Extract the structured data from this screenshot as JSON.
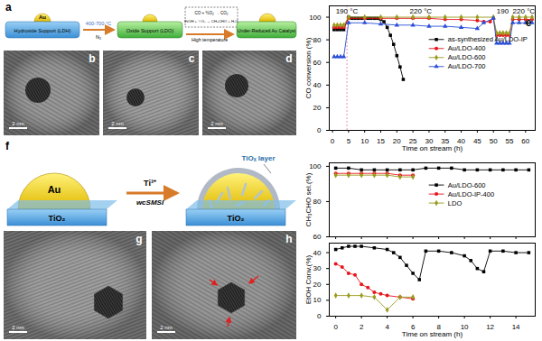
{
  "figure": {
    "a": {
      "label": "a",
      "au": "Au",
      "start": "Hydroxide Support (LDH)",
      "temperature": "400-700 °C",
      "gas": "N₂",
      "middle": "Oxide Support (LDO)",
      "box_title": "High temperature",
      "reaction_1": "CO + ½O₂ → CO₂",
      "reaction_2": "EtOH + ½O₂ → CH₃CHO + H₂O",
      "end": "Under-Reduced Au Catalyst"
    },
    "b": {
      "label": "b",
      "scale_bar": "2 nm"
    },
    "c": {
      "label": "c",
      "scale_bar": "2 nm"
    },
    "d": {
      "label": "d",
      "scale_bar": "2 nm"
    },
    "f": {
      "label": "f",
      "au": "Au",
      "support": "TiO₂",
      "reagent": "Ti³⁺",
      "process": "wcSMSI",
      "layer": "TiOₓ layer"
    },
    "g": {
      "label": "g",
      "scale_bar": "2 nm"
    },
    "h": {
      "label": "h",
      "scale_bar": "2 nm"
    }
  },
  "chart_data": [
    {
      "type": "line",
      "title": "e",
      "x_label": "Time on stream (h)",
      "y_label": "CO conversion (%)",
      "xlim": [
        -1,
        63
      ],
      "xticks": [
        0,
        5,
        10,
        15,
        20,
        25,
        30,
        35,
        40,
        45,
        50,
        55,
        60
      ],
      "ylim": [
        0,
        110
      ],
      "yticks": [
        0,
        20,
        40,
        60,
        80,
        100
      ],
      "legend": "right",
      "reference_lines_x": [
        4.5
      ],
      "annotations": [
        {
          "text": "190 °C",
          "x": 1,
          "y": 105.5
        },
        {
          "text": "220 °C",
          "x": 24,
          "y": 105.5
        },
        {
          "text": "190",
          "x": 51,
          "y": 105.5
        },
        {
          "text": "220 °C",
          "x": 56,
          "y": 105.5
        }
      ],
      "series": [
        {
          "name": "as-synthesized Au/LDO-IP",
          "color": "#000000",
          "marker": "square",
          "line_style": "solid",
          "x": [
            0.5,
            1.5,
            2.5,
            3.5,
            5,
            6,
            7,
            8,
            9,
            10,
            11,
            12,
            13,
            14,
            15,
            16,
            17,
            18,
            19,
            20,
            21,
            22
          ],
          "values": [
            89,
            89,
            89,
            89,
            100,
            99,
            99,
            99,
            99,
            99,
            99,
            99,
            99,
            99,
            98,
            96,
            91,
            84,
            76,
            66,
            56,
            45
          ]
        },
        {
          "name": "Au/LDO-400",
          "color": "#e8141b",
          "marker": "circle",
          "line_style": "solid",
          "x": [
            0.5,
            1.5,
            2.5,
            3.5,
            5,
            10,
            15,
            20,
            25,
            30,
            35,
            40,
            45,
            47,
            49,
            50,
            51,
            52,
            53,
            54,
            55,
            56,
            58,
            60,
            62
          ],
          "values": [
            91,
            91,
            91,
            91,
            99,
            99,
            99,
            99,
            99,
            99,
            98,
            98,
            97,
            96,
            96,
            99,
            84,
            84,
            84,
            84,
            84,
            98,
            98,
            98,
            98
          ]
        },
        {
          "name": "Au/LDO-600",
          "color": "#9a9a1e",
          "marker": "diamond",
          "line_style": "solid",
          "x": [
            0.5,
            1.5,
            2.5,
            3.5,
            5,
            10,
            15,
            20,
            25,
            30,
            35,
            40,
            45,
            50,
            51,
            52,
            53,
            54,
            55,
            56,
            58,
            60,
            62
          ],
          "values": [
            93,
            93,
            93,
            93,
            100,
            100,
            100,
            100,
            100,
            100,
            100,
            100,
            100,
            100,
            86,
            86,
            86,
            86,
            86,
            100,
            100,
            100,
            100
          ]
        },
        {
          "name": "Au/LDO-700",
          "color": "#2a4fd6",
          "marker": "triangle",
          "line_style": "solid",
          "x": [
            0.5,
            1.5,
            2.5,
            3.5,
            5,
            10,
            15,
            20,
            25,
            30,
            35,
            40,
            45,
            47,
            50,
            51,
            52,
            53,
            54,
            55,
            56,
            58,
            60,
            62
          ],
          "values": [
            65,
            65,
            65,
            65,
            95,
            95,
            94,
            93,
            93,
            92,
            92,
            91,
            90,
            95,
            99,
            77,
            77,
            77,
            77,
            77,
            95,
            95,
            95,
            95
          ]
        }
      ]
    },
    {
      "type": "line",
      "y_label": "CH₃CHO sel.(%)",
      "tick_labels": "y",
      "xlim": [
        -0.5,
        15.5
      ],
      "xticks": [
        0,
        2,
        4,
        6,
        8,
        10,
        12,
        14
      ],
      "ylim": [
        60,
        102
      ],
      "yticks": [
        60,
        80,
        100
      ],
      "legend": "right",
      "series": [
        {
          "name": "Au/LDO-600",
          "color": "#000000",
          "marker": "square",
          "line_style": "solid",
          "x": [
            0,
            1,
            2,
            3,
            4,
            5,
            6,
            7,
            8,
            9,
            10,
            11,
            12,
            13,
            14,
            15
          ],
          "values": [
            99,
            99,
            98,
            98,
            98,
            98,
            98,
            99,
            99,
            99,
            98,
            98,
            98,
            98,
            98,
            98
          ]
        },
        {
          "name": "Au/LDO-IP-400",
          "color": "#e8141b",
          "marker": "circle",
          "line_style": "solid",
          "x": [
            0,
            1,
            2,
            3,
            4,
            5,
            6
          ],
          "values": [
            96,
            96,
            96,
            96,
            96,
            95,
            95
          ]
        },
        {
          "name": "LDO",
          "color": "#9a9a1e",
          "marker": "diamond",
          "line_style": "solid",
          "x": [
            0,
            1,
            2,
            3,
            4,
            5,
            6
          ],
          "values": [
            95,
            95,
            95,
            95,
            95,
            94,
            94
          ]
        }
      ]
    },
    {
      "type": "line",
      "x_label": "Time on stream (h)",
      "y_label": "EtOH Conv.(%)",
      "xlim": [
        -0.5,
        15.5
      ],
      "xticks": [
        0,
        2,
        4,
        6,
        8,
        10,
        12,
        14
      ],
      "ylim": [
        0,
        46
      ],
      "yticks": [
        0,
        10,
        20,
        30,
        40
      ],
      "series": [
        {
          "name": "Au/LDO-600",
          "color": "#000000",
          "marker": "square",
          "line_style": "solid",
          "x": [
            0,
            0.5,
            1,
            1.5,
            2,
            3,
            4,
            4.5,
            5,
            5.5,
            6,
            6.5,
            7,
            8,
            9,
            10,
            10.5,
            11,
            11.5,
            12,
            13,
            14,
            15
          ],
          "values": [
            42,
            43,
            44,
            44,
            44,
            43,
            42,
            40,
            37,
            32,
            27,
            23,
            41,
            41,
            40,
            38,
            35,
            30,
            28,
            41,
            41,
            40,
            40
          ]
        },
        {
          "name": "Au/LDO-IP-400",
          "color": "#e8141b",
          "marker": "circle",
          "line_style": "solid",
          "x": [
            0,
            0.5,
            1,
            1.5,
            2,
            2.5,
            3,
            3.5,
            4,
            5,
            6
          ],
          "values": [
            33,
            31,
            27,
            26,
            20,
            18,
            15,
            14,
            13,
            12,
            11
          ]
        },
        {
          "name": "LDO",
          "color": "#9a9a1e",
          "marker": "diamond",
          "line_style": "solid",
          "x": [
            0,
            1,
            2,
            3,
            4,
            5,
            6
          ],
          "values": [
            13,
            13,
            13,
            12,
            4,
            12,
            12
          ]
        }
      ]
    }
  ]
}
